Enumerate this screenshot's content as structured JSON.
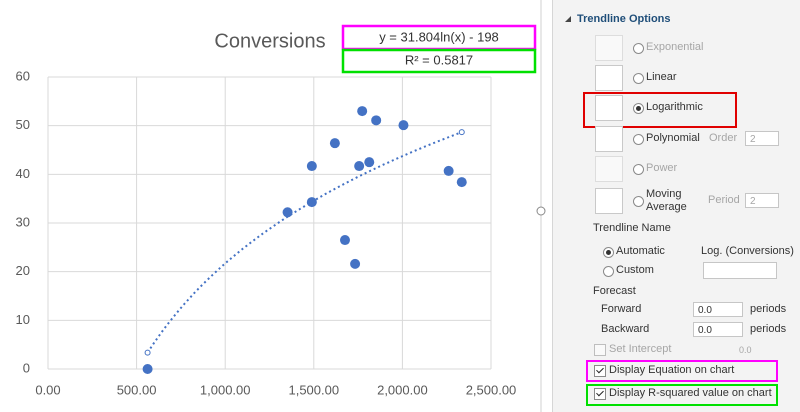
{
  "chart_data": {
    "type": "scatter",
    "title": "Conversions",
    "x": [
      562,
      1352,
      1489,
      1489,
      1619,
      1676,
      1733,
      1756,
      1773,
      1813,
      1852,
      2006,
      2261,
      2335
    ],
    "values": [
      0,
      32.2,
      34.3,
      41.7,
      46.4,
      26.5,
      21.6,
      41.7,
      53.0,
      42.5,
      51.1,
      50.1,
      40.7,
      38.4
    ],
    "color": "#4472c4",
    "xlim": [
      0,
      2500
    ],
    "xticks": [
      {
        "value": 0,
        "label": "0.00"
      },
      {
        "value": 500,
        "label": "500.00"
      },
      {
        "value": 1000,
        "label": "1,000.00"
      },
      {
        "value": 1500,
        "label": "1,500.00"
      },
      {
        "value": 2000,
        "label": "2,000.00"
      },
      {
        "value": 2500,
        "label": "2,500.00"
      }
    ],
    "ylim": [
      0,
      60
    ],
    "yticks": [
      0,
      10,
      20,
      30,
      40,
      50,
      60
    ],
    "grid": true,
    "trendline": {
      "type": "logarithmic",
      "coefficient": 31.804,
      "intercept": -198,
      "color": "#4472c4",
      "equation": "y = 31.804ln(x) - 198",
      "r_squared_label": "R² = 0.5817"
    }
  },
  "panel": {
    "header": "Trendline Options",
    "options": [
      {
        "label": "Exponential",
        "enabled": false,
        "selected": false
      },
      {
        "label": "Linear",
        "enabled": true,
        "selected": false
      },
      {
        "label": "Logarithmic",
        "enabled": true,
        "selected": true
      },
      {
        "label": "Polynomial",
        "enabled": true,
        "selected": false,
        "param": {
          "label": "Order",
          "value": 2
        }
      },
      {
        "label": "Power",
        "enabled": false,
        "selected": false
      },
      {
        "label": "Moving Average",
        "enabled": true,
        "selected": false,
        "param": {
          "label": "Period",
          "value": 2
        }
      }
    ],
    "name_section": "Trendline Name",
    "name_automatic": {
      "label": "Automatic",
      "selected": true,
      "value": "Log. (Conversions)"
    },
    "name_custom": {
      "label": "Custom",
      "selected": false
    },
    "forecast": "Forecast",
    "forward": {
      "label": "Forward",
      "value": "0.0",
      "unit": "periods"
    },
    "backward": {
      "label": "Backward",
      "value": "0.0",
      "unit": "periods"
    },
    "set_intercept": {
      "label": "Set Intercept",
      "checked": false,
      "value": "0.0"
    },
    "display_equation": {
      "label": "Display Equation on chart",
      "checked": true
    },
    "display_r_squared": {
      "label": "Display R-squared value on chart",
      "checked": true
    }
  }
}
